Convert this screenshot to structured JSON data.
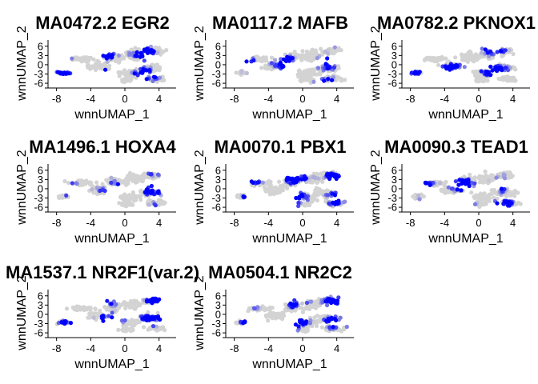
{
  "figure": {
    "colors": {
      "low": "#d3d3d3",
      "high": "#0000ff",
      "point_stroke": "none"
    }
  },
  "chart_data": [
    {
      "type": "scatter",
      "title": "MA0472.2 EGR2",
      "xlabel": "wnnUMAP_1",
      "ylabel": "wnnUMAP_2",
      "xlim": [
        -9,
        6
      ],
      "ylim": [
        -6.5,
        7.5
      ],
      "xticks": [
        "-8",
        "-4",
        "0",
        "4"
      ],
      "yticks": [
        "-6",
        "-3",
        "0",
        "3",
        "6"
      ],
      "grid": false,
      "legend": "none",
      "seed": 11
    },
    {
      "type": "scatter",
      "title": "MA0117.2 MAFB",
      "xlabel": "wnnUMAP_1",
      "ylabel": "wnnUMAP_2",
      "xlim": [
        -9,
        6
      ],
      "ylim": [
        -6.5,
        7.5
      ],
      "xticks": [
        "-8",
        "-4",
        "0",
        "4"
      ],
      "yticks": [
        "-6",
        "-3",
        "0",
        "3",
        "6"
      ],
      "grid": false,
      "legend": "none",
      "seed": 23
    },
    {
      "type": "scatter",
      "title": "MA0782.2 PKNOX1",
      "xlabel": "wnnUMAP_1",
      "ylabel": "wnnUMAP_2",
      "xlim": [
        -9,
        6
      ],
      "ylim": [
        -6.5,
        7.5
      ],
      "xticks": [
        "-8",
        "-4",
        "0",
        "4"
      ],
      "yticks": [
        "-6",
        "-3",
        "0",
        "3",
        "6"
      ],
      "grid": false,
      "legend": "none",
      "seed": 37
    },
    {
      "type": "scatter",
      "title": "MA1496.1 HOXA4",
      "xlabel": "wnnUMAP_1",
      "ylabel": "wnnUMAP_2",
      "xlim": [
        -9,
        6
      ],
      "ylim": [
        -6.5,
        7.5
      ],
      "xticks": [
        "-8",
        "-4",
        "0",
        "4"
      ],
      "yticks": [
        "-6",
        "-3",
        "0",
        "3",
        "6"
      ],
      "grid": false,
      "legend": "none",
      "seed": 41
    },
    {
      "type": "scatter",
      "title": "MA0070.1 PBX1",
      "xlabel": "wnnUMAP_1",
      "ylabel": "wnnUMAP_2",
      "xlim": [
        -9,
        6
      ],
      "ylim": [
        -6.5,
        7.5
      ],
      "xticks": [
        "-8",
        "-4",
        "0",
        "4"
      ],
      "yticks": [
        "-6",
        "-3",
        "0",
        "3",
        "6"
      ],
      "grid": false,
      "legend": "none",
      "seed": 53
    },
    {
      "type": "scatter",
      "title": "MA0090.3 TEAD1",
      "xlabel": "wnnUMAP_1",
      "ylabel": "wnnUMAP_2",
      "xlim": [
        -9,
        6
      ],
      "ylim": [
        -6.5,
        7.5
      ],
      "xticks": [
        "-8",
        "-4",
        "0",
        "4"
      ],
      "yticks": [
        "-6",
        "-3",
        "0",
        "3",
        "6"
      ],
      "grid": false,
      "legend": "none",
      "seed": 67
    },
    {
      "type": "scatter",
      "title": "MA1537.1 NR2F1(var.2)",
      "xlabel": "wnnUMAP_1",
      "ylabel": "wnnUMAP_2",
      "xlim": [
        -9,
        6
      ],
      "ylim": [
        -6.5,
        7.5
      ],
      "xticks": [
        "-8",
        "-4",
        "0",
        "4"
      ],
      "yticks": [
        "-6",
        "-3",
        "0",
        "3",
        "6"
      ],
      "grid": false,
      "legend": "none",
      "seed": 79
    },
    {
      "type": "scatter",
      "title": "MA0504.1 NR2C2",
      "xlabel": "wnnUMAP_1",
      "ylabel": "wnnUMAP_2",
      "xlim": [
        -9,
        6
      ],
      "ylim": [
        -6.5,
        7.5
      ],
      "xticks": [
        "-8",
        "-4",
        "0",
        "4"
      ],
      "yticks": [
        "-6",
        "-3",
        "0",
        "3",
        "6"
      ],
      "grid": false,
      "legend": "none",
      "seed": 97
    }
  ]
}
